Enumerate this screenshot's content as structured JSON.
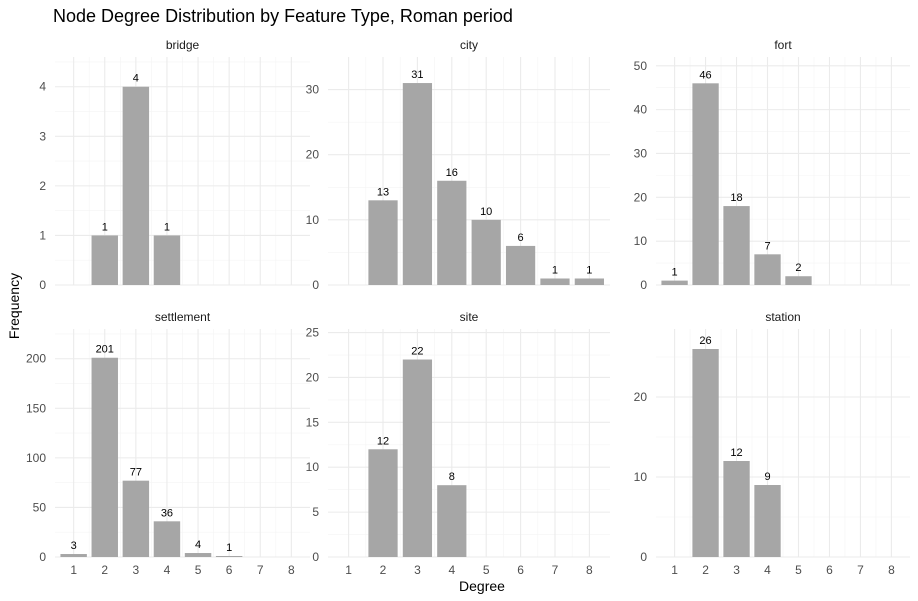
{
  "chart_data": {
    "type": "bar",
    "title": "Node Degree Distribution by Feature Type, Roman period",
    "xlabel": "Degree",
    "ylabel": "Frequency",
    "x_ticks": [
      "1",
      "2",
      "3",
      "4",
      "5",
      "6",
      "7",
      "8"
    ],
    "facets": [
      {
        "name": "bridge",
        "ylim": [
          0,
          4.6
        ],
        "y_ticks": [
          0,
          1,
          2,
          3,
          4
        ],
        "data": [
          {
            "x": 2,
            "value": 1
          },
          {
            "x": 3,
            "value": 4
          },
          {
            "x": 4,
            "value": 1
          }
        ]
      },
      {
        "name": "city",
        "ylim": [
          0,
          35
        ],
        "y_ticks": [
          0,
          10,
          20,
          30
        ],
        "data": [
          {
            "x": 2,
            "value": 13
          },
          {
            "x": 3,
            "value": 31
          },
          {
            "x": 4,
            "value": 16
          },
          {
            "x": 5,
            "value": 10
          },
          {
            "x": 6,
            "value": 6
          },
          {
            "x": 7,
            "value": 1
          },
          {
            "x": 8,
            "value": 1
          }
        ]
      },
      {
        "name": "fort",
        "ylim": [
          0,
          52
        ],
        "y_ticks": [
          0,
          10,
          20,
          30,
          40,
          50
        ],
        "data": [
          {
            "x": 1,
            "value": 1
          },
          {
            "x": 2,
            "value": 46
          },
          {
            "x": 3,
            "value": 18
          },
          {
            "x": 4,
            "value": 7
          },
          {
            "x": 5,
            "value": 2
          }
        ]
      },
      {
        "name": "settlement",
        "ylim": [
          0,
          230
        ],
        "y_ticks": [
          0,
          50,
          100,
          150,
          200
        ],
        "data": [
          {
            "x": 1,
            "value": 3
          },
          {
            "x": 2,
            "value": 201
          },
          {
            "x": 3,
            "value": 77
          },
          {
            "x": 4,
            "value": 36
          },
          {
            "x": 5,
            "value": 4
          },
          {
            "x": 6,
            "value": 1
          }
        ]
      },
      {
        "name": "site",
        "ylim": [
          0,
          25.4
        ],
        "y_ticks": [
          0,
          5,
          10,
          15,
          20,
          25
        ],
        "data": [
          {
            "x": 2,
            "value": 12
          },
          {
            "x": 3,
            "value": 22
          },
          {
            "x": 4,
            "value": 8
          }
        ]
      },
      {
        "name": "station",
        "ylim": [
          0,
          28.5
        ],
        "y_ticks": [
          0,
          10,
          20
        ],
        "data": [
          {
            "x": 2,
            "value": 26
          },
          {
            "x": 3,
            "value": 12
          },
          {
            "x": 4,
            "value": 9
          }
        ]
      }
    ],
    "bar_color": "#a6a6a6",
    "grid": true
  }
}
